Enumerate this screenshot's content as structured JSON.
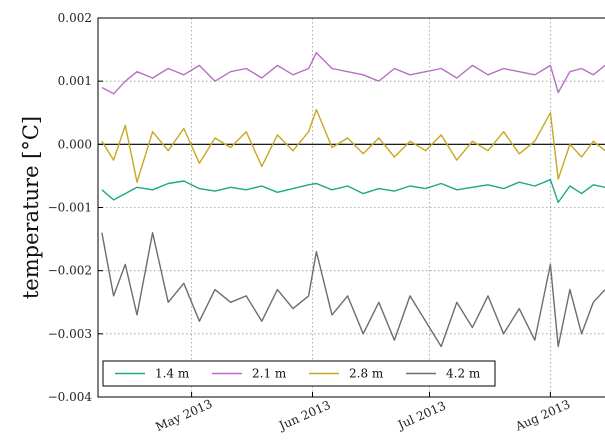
{
  "chart_data": {
    "type": "line",
    "title": "",
    "xlabel": "",
    "ylabel": "temperature [°C]",
    "x_range": [
      "2013-04-07",
      "2013-08-15"
    ],
    "ylim": [
      -0.004,
      0.002
    ],
    "y_ticks": [
      -0.004,
      -0.003,
      -0.002,
      -0.001,
      0.0,
      0.001,
      0.002
    ],
    "y_tick_labels": [
      "−0.004",
      "−0.003",
      "−0.002",
      "−0.001",
      "0.000",
      "0.001",
      "0.002"
    ],
    "x_ticks": [
      "2013-05-01",
      "2013-06-01",
      "2013-07-01",
      "2013-08-01"
    ],
    "x_tick_labels": [
      "May 2013",
      "Jun 2013",
      "Jul 2013",
      "Aug 2013"
    ],
    "grid": true,
    "zero_line": true,
    "legend_position": "lower-left",
    "series": [
      {
        "name": "1.4 m",
        "color": "#1aaa86",
        "x": [
          "2013-04-08",
          "2013-04-11",
          "2013-04-14",
          "2013-04-17",
          "2013-04-21",
          "2013-04-25",
          "2013-04-29",
          "2013-05-03",
          "2013-05-07",
          "2013-05-11",
          "2013-05-15",
          "2013-05-19",
          "2013-05-23",
          "2013-05-27",
          "2013-05-31",
          "2013-06-02",
          "2013-06-06",
          "2013-06-10",
          "2013-06-14",
          "2013-06-18",
          "2013-06-22",
          "2013-06-26",
          "2013-06-30",
          "2013-07-04",
          "2013-07-08",
          "2013-07-12",
          "2013-07-16",
          "2013-07-20",
          "2013-07-24",
          "2013-07-28",
          "2013-08-01",
          "2013-08-03",
          "2013-08-06",
          "2013-08-09",
          "2013-08-12",
          "2013-08-15"
        ],
        "y": [
          -0.00072,
          -0.00088,
          -0.00078,
          -0.00068,
          -0.00072,
          -0.00062,
          -0.00058,
          -0.0007,
          -0.00074,
          -0.00068,
          -0.00072,
          -0.00066,
          -0.00076,
          -0.0007,
          -0.00064,
          -0.00062,
          -0.00072,
          -0.00066,
          -0.00078,
          -0.0007,
          -0.00074,
          -0.00066,
          -0.0007,
          -0.00062,
          -0.00072,
          -0.00068,
          -0.00064,
          -0.0007,
          -0.0006,
          -0.00066,
          -0.00056,
          -0.00092,
          -0.00066,
          -0.00078,
          -0.00064,
          -0.00068
        ]
      },
      {
        "name": "2.1 m",
        "color": "#b86fc4",
        "x": [
          "2013-04-08",
          "2013-04-11",
          "2013-04-14",
          "2013-04-17",
          "2013-04-21",
          "2013-04-25",
          "2013-04-29",
          "2013-05-03",
          "2013-05-07",
          "2013-05-11",
          "2013-05-15",
          "2013-05-19",
          "2013-05-23",
          "2013-05-27",
          "2013-05-31",
          "2013-06-02",
          "2013-06-06",
          "2013-06-10",
          "2013-06-14",
          "2013-06-18",
          "2013-06-22",
          "2013-06-26",
          "2013-06-30",
          "2013-07-04",
          "2013-07-08",
          "2013-07-12",
          "2013-07-16",
          "2013-07-20",
          "2013-07-24",
          "2013-07-28",
          "2013-08-01",
          "2013-08-03",
          "2013-08-06",
          "2013-08-09",
          "2013-08-12",
          "2013-08-15"
        ],
        "y": [
          0.0009,
          0.0008,
          0.001,
          0.00115,
          0.00105,
          0.0012,
          0.0011,
          0.00125,
          0.001,
          0.00115,
          0.0012,
          0.00105,
          0.00125,
          0.0011,
          0.0012,
          0.00145,
          0.0012,
          0.00115,
          0.0011,
          0.001,
          0.0012,
          0.0011,
          0.00115,
          0.0012,
          0.00105,
          0.00125,
          0.0011,
          0.0012,
          0.00115,
          0.0011,
          0.00125,
          0.00082,
          0.00115,
          0.0012,
          0.0011,
          0.00125
        ]
      },
      {
        "name": "2.8 m",
        "color": "#c8a822",
        "x": [
          "2013-04-08",
          "2013-04-11",
          "2013-04-14",
          "2013-04-17",
          "2013-04-21",
          "2013-04-25",
          "2013-04-29",
          "2013-05-03",
          "2013-05-07",
          "2013-05-11",
          "2013-05-15",
          "2013-05-19",
          "2013-05-23",
          "2013-05-27",
          "2013-05-31",
          "2013-06-02",
          "2013-06-06",
          "2013-06-10",
          "2013-06-14",
          "2013-06-18",
          "2013-06-22",
          "2013-06-26",
          "2013-06-30",
          "2013-07-04",
          "2013-07-08",
          "2013-07-12",
          "2013-07-16",
          "2013-07-20",
          "2013-07-24",
          "2013-07-28",
          "2013-08-01",
          "2013-08-03",
          "2013-08-06",
          "2013-08-09",
          "2013-08-12",
          "2013-08-15"
        ],
        "y": [
          5e-05,
          -0.00025,
          0.0003,
          -0.0006,
          0.0002,
          -0.0001,
          0.00025,
          -0.0003,
          0.0001,
          -5e-05,
          0.0002,
          -0.00035,
          0.00015,
          -0.0001,
          0.0002,
          0.00055,
          -5e-05,
          0.0001,
          -0.00015,
          0.0001,
          -0.0002,
          5e-05,
          -0.0001,
          0.00015,
          -0.00025,
          5e-05,
          -0.0001,
          0.0002,
          -0.00015,
          5e-05,
          0.0005,
          -0.00055,
          0.0,
          -0.0002,
          5e-05,
          -0.0001
        ]
      },
      {
        "name": "4.2 m",
        "color": "#6d6d6d",
        "x": [
          "2013-04-08",
          "2013-04-11",
          "2013-04-14",
          "2013-04-17",
          "2013-04-21",
          "2013-04-25",
          "2013-04-29",
          "2013-05-03",
          "2013-05-07",
          "2013-05-11",
          "2013-05-15",
          "2013-05-19",
          "2013-05-23",
          "2013-05-27",
          "2013-05-31",
          "2013-06-02",
          "2013-06-06",
          "2013-06-10",
          "2013-06-14",
          "2013-06-18",
          "2013-06-22",
          "2013-06-26",
          "2013-06-30",
          "2013-07-04",
          "2013-07-08",
          "2013-07-12",
          "2013-07-16",
          "2013-07-20",
          "2013-07-24",
          "2013-07-28",
          "2013-08-01",
          "2013-08-03",
          "2013-08-06",
          "2013-08-09",
          "2013-08-12",
          "2013-08-15"
        ],
        "y": [
          -0.0014,
          -0.0024,
          -0.0019,
          -0.0027,
          -0.0014,
          -0.0025,
          -0.0022,
          -0.0028,
          -0.0023,
          -0.0025,
          -0.0024,
          -0.0028,
          -0.0023,
          -0.0026,
          -0.0024,
          -0.0017,
          -0.0027,
          -0.0024,
          -0.003,
          -0.0025,
          -0.0031,
          -0.0024,
          -0.0028,
          -0.0032,
          -0.0025,
          -0.0029,
          -0.0024,
          -0.003,
          -0.0026,
          -0.0031,
          -0.0019,
          -0.0032,
          -0.0023,
          -0.003,
          -0.0025,
          -0.0023
        ]
      }
    ]
  }
}
